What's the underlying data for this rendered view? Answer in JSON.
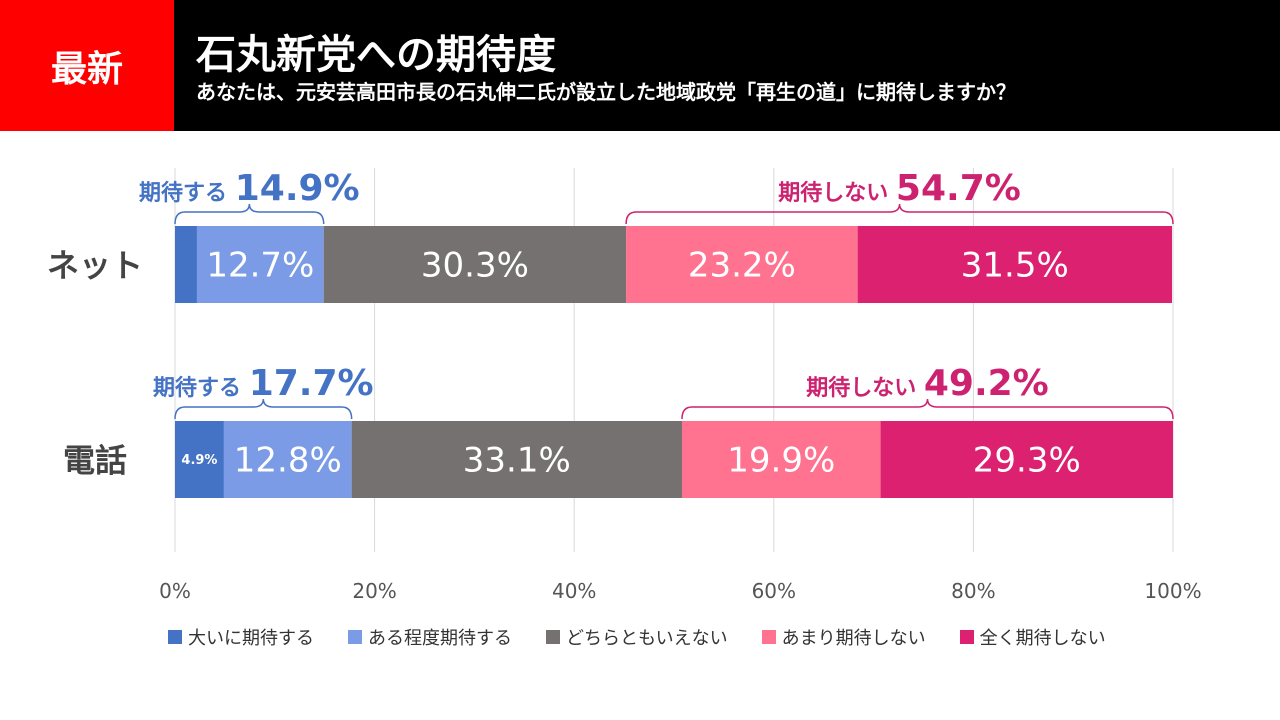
{
  "header": {
    "badge": "最新",
    "title": "石丸新党への期待度",
    "subtitle": "あなたは、元安芸高田市長の石丸伸二氏が設立した地域政党「再生の道」に期待しますか？"
  },
  "colors": {
    "strongly_expect": "#4472c4",
    "somewhat_expect": "#7b9be6",
    "neutral": "#767171",
    "not_much": "#ff7290",
    "not_at_all": "#dc2170",
    "expect_label": "#4472c4",
    "not_expect_label": "#cc2270"
  },
  "chart_data": {
    "type": "bar",
    "orientation": "horizontal",
    "stacked": true,
    "categories": [
      "ネット",
      "電話"
    ],
    "series": [
      {
        "name": "大いに期待する",
        "values": [
          2.2,
          4.9
        ],
        "labels": [
          "",
          "4.9%"
        ]
      },
      {
        "name": "ある程度期待する",
        "values": [
          12.7,
          12.8
        ],
        "labels": [
          "12.7%",
          "12.8%"
        ]
      },
      {
        "name": "どちらともいえない",
        "values": [
          30.3,
          33.1
        ],
        "labels": [
          "30.3%",
          "33.1%"
        ]
      },
      {
        "name": "あまり期待しない",
        "values": [
          23.2,
          19.9
        ],
        "labels": [
          "23.2%",
          "19.9%"
        ]
      },
      {
        "name": "全く期待しない",
        "values": [
          31.5,
          29.3
        ],
        "labels": [
          "31.5%",
          "29.3%"
        ]
      }
    ],
    "xlim": [
      0,
      100
    ],
    "xticks": [
      0,
      20,
      40,
      60,
      80,
      100
    ],
    "xtick_labels": [
      "0%",
      "20%",
      "40%",
      "60%",
      "80%",
      "100%"
    ],
    "grid": true,
    "legend_position": "bottom",
    "annotations": [
      {
        "row": 0,
        "side": "expect",
        "label": "期待する",
        "value": "14.9%"
      },
      {
        "row": 0,
        "side": "not_expect",
        "label": "期待しない",
        "value": "54.7%"
      },
      {
        "row": 1,
        "side": "expect",
        "label": "期待する",
        "value": "17.7%"
      },
      {
        "row": 1,
        "side": "not_expect",
        "label": "期待しない",
        "value": "49.2%"
      }
    ]
  }
}
